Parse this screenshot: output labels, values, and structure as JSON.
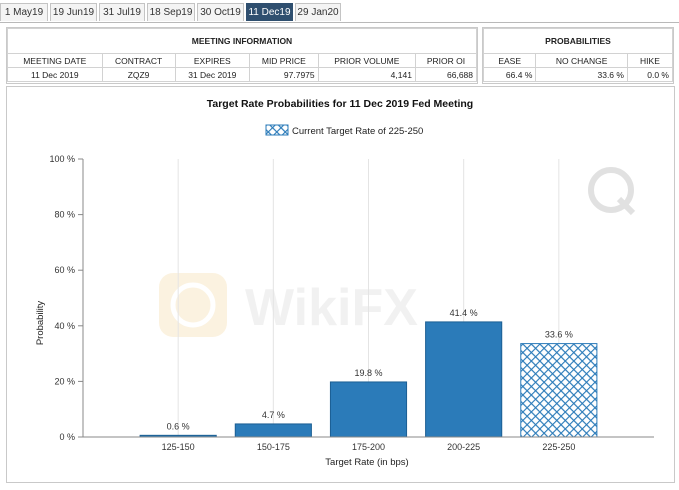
{
  "tabs": [
    {
      "label": "1 May19"
    },
    {
      "label": "19 Jun19"
    },
    {
      "label": "31 Jul19"
    },
    {
      "label": "18 Sep19"
    },
    {
      "label": "30 Oct19"
    },
    {
      "label": "11 Dec19",
      "active": true
    },
    {
      "label": "29 Jan20"
    }
  ],
  "meeting_info": {
    "title": "MEETING INFORMATION",
    "headers": [
      "MEETING DATE",
      "CONTRACT",
      "EXPIRES",
      "MID PRICE",
      "PRIOR VOLUME",
      "PRIOR OI"
    ],
    "values": [
      "11 Dec 2019",
      "ZQZ9",
      "31 Dec 2019",
      "97.7975",
      "4,141",
      "66,688"
    ]
  },
  "probabilities": {
    "title": "PROBABILITIES",
    "headers": [
      "EASE",
      "NO CHANGE",
      "HIKE"
    ],
    "values": [
      "66.4 %",
      "33.6 %",
      "0.0 %"
    ]
  },
  "watermark": "WikiFX",
  "colors": {
    "bar": "#2b7bb9",
    "bar_stroke": "#1c5f93",
    "hatch_bg": "#ffffff",
    "active_tab": "#2f4f6f"
  },
  "chart_data": {
    "type": "bar",
    "title": "Target Rate Probabilities for 11 Dec 2019 Fed Meeting",
    "xlabel": "Target Rate (in bps)",
    "ylabel": "Probability",
    "categories": [
      "125-150",
      "150-175",
      "175-200",
      "200-225",
      "225-250"
    ],
    "values": [
      0.6,
      4.7,
      19.8,
      41.4,
      33.6
    ],
    "data_labels": [
      "0.6 %",
      "4.7 %",
      "19.8 %",
      "41.4 %",
      "33.6 %"
    ],
    "hatched": [
      false,
      false,
      false,
      false,
      true
    ],
    "ylim": [
      0,
      100
    ],
    "yticks": [
      0,
      20,
      40,
      60,
      80,
      100
    ],
    "ytick_labels": [
      "0 %",
      "20 %",
      "40 %",
      "60 %",
      "80 %",
      "100 %"
    ],
    "legend": {
      "label": "Current Target Rate of 225-250",
      "placement": "top-center"
    },
    "grid": "vertical"
  }
}
